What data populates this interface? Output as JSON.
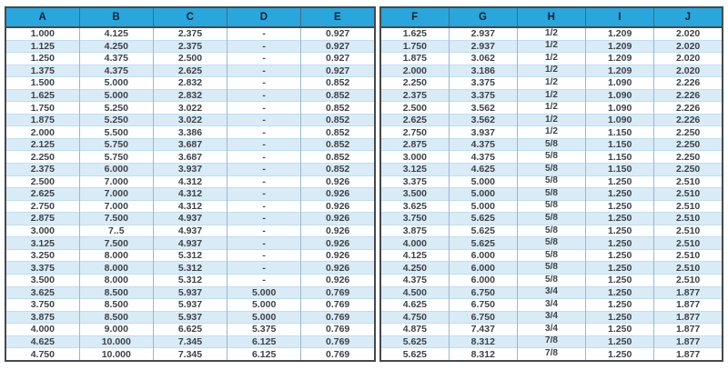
{
  "table": {
    "colors": {
      "header_bg": "#2ba6dc",
      "header_text": "#0e2239",
      "stripe": "#d9ebf7",
      "outer_border": "#45494d",
      "body_text": "#3f4247"
    },
    "left": {
      "headers": [
        "A",
        "B",
        "C",
        "D",
        "E"
      ],
      "rows": [
        [
          "1.000",
          "4.125",
          "2.375",
          "-",
          "0.927"
        ],
        [
          "1.125",
          "4.250",
          "2.375",
          "-",
          "0.927"
        ],
        [
          "1.250",
          "4.375",
          "2.500",
          "-",
          "0.927"
        ],
        [
          "1.375",
          "4.375",
          "2.625",
          "-",
          "0.927"
        ],
        [
          "1.500",
          "5.000",
          "2.832",
          "-",
          "0.852"
        ],
        [
          "1.625",
          "5.000",
          "2.832",
          "-",
          "0.852"
        ],
        [
          "1.750",
          "5.250",
          "3.022",
          "-",
          "0.852"
        ],
        [
          "1.875",
          "5.250",
          "3.022",
          "-",
          "0.852"
        ],
        [
          "2.000",
          "5.500",
          "3.386",
          "-",
          "0.852"
        ],
        [
          "2.125",
          "5.750",
          "3.687",
          "-",
          "0.852"
        ],
        [
          "2.250",
          "5.750",
          "3.687",
          "-",
          "0.852"
        ],
        [
          "2.375",
          "6.000",
          "3.937",
          "-",
          "0.852"
        ],
        [
          "2.500",
          "7.000",
          "4.312",
          "-",
          "0.926"
        ],
        [
          "2.625",
          "7.000",
          "4.312",
          "-",
          "0.926"
        ],
        [
          "2.750",
          "7.000",
          "4.312",
          "-",
          "0.926"
        ],
        [
          "2.875",
          "7.500",
          "4.937",
          "-",
          "0.926"
        ],
        [
          "3.000",
          "7..5",
          "4.937",
          "-",
          "0.926"
        ],
        [
          "3.125",
          "7.500",
          "4.937",
          "-",
          "0.926"
        ],
        [
          "3.250",
          "8.000",
          "5.312",
          "-",
          "0.926"
        ],
        [
          "3.375",
          "8.000",
          "5.312",
          "-",
          "0.926"
        ],
        [
          "3.500",
          "8.000",
          "5.312",
          "-",
          "0.926"
        ],
        [
          "3.625",
          "8.500",
          "5.937",
          "5.000",
          "0.769"
        ],
        [
          "3.750",
          "8.500",
          "5.937",
          "5.000",
          "0.769"
        ],
        [
          "3.875",
          "8.500",
          "5.937",
          "5.000",
          "0.769"
        ],
        [
          "4.000",
          "9.000",
          "6.625",
          "5.375",
          "0.769"
        ],
        [
          "4.625",
          "10.000",
          "7.345",
          "6.125",
          "0.769"
        ],
        [
          "4.750",
          "10.000",
          "7.345",
          "6.125",
          "0.769"
        ]
      ]
    },
    "right": {
      "headers": [
        "F",
        "G",
        "H",
        "I",
        "J"
      ],
      "fraction_column_index": 2,
      "rows": [
        [
          "1.625",
          "2.937",
          "1/2",
          "1.209",
          "2.020"
        ],
        [
          "1.750",
          "2.937",
          "1/2",
          "1.209",
          "2.020"
        ],
        [
          "1.875",
          "3.062",
          "1/2",
          "1.209",
          "2.020"
        ],
        [
          "2.000",
          "3.186",
          "1/2",
          "1.209",
          "2.020"
        ],
        [
          "2.250",
          "3.375",
          "1/2",
          "1.090",
          "2.226"
        ],
        [
          "2.375",
          "3.375",
          "1/2",
          "1.090",
          "2.226"
        ],
        [
          "2.500",
          "3.562",
          "1/2",
          "1.090",
          "2.226"
        ],
        [
          "2.625",
          "3.562",
          "1/2",
          "1.090",
          "2.226"
        ],
        [
          "2.750",
          "3.937",
          "1/2",
          "1.150",
          "2.250"
        ],
        [
          "2.875",
          "4.375",
          "5/8",
          "1.150",
          "2.250"
        ],
        [
          "3.000",
          "4.375",
          "5/8",
          "1.150",
          "2.250"
        ],
        [
          "3.125",
          "4.625",
          "5/8",
          "1.150",
          "2.250"
        ],
        [
          "3.375",
          "5.000",
          "5/8",
          "1.250",
          "2.510"
        ],
        [
          "3.500",
          "5.000",
          "5/8",
          "1.250",
          "2.510"
        ],
        [
          "3.625",
          "5.000",
          "5/8",
          "1.250",
          "2.510"
        ],
        [
          "3.750",
          "5.625",
          "5/8",
          "1.250",
          "2.510"
        ],
        [
          "3.875",
          "5.625",
          "5/8",
          "1.250",
          "2.510"
        ],
        [
          "4.000",
          "5.625",
          "5/8",
          "1.250",
          "2.510"
        ],
        [
          "4.125",
          "6.000",
          "5/8",
          "1.250",
          "2.510"
        ],
        [
          "4.250",
          "6.000",
          "5/8",
          "1.250",
          "2.510"
        ],
        [
          "4.375",
          "6.000",
          "5/8",
          "1.250",
          "2.510"
        ],
        [
          "4.500",
          "6.750",
          "3/4",
          "1.250",
          "1.877"
        ],
        [
          "4.625",
          "6.750",
          "3/4",
          "1.250",
          "1.877"
        ],
        [
          "4.750",
          "6.750",
          "3/4",
          "1.250",
          "1.877"
        ],
        [
          "4.875",
          "7.437",
          "3/4",
          "1.250",
          "1.877"
        ],
        [
          "5.625",
          "8.312",
          "7/8",
          "1.250",
          "1.877"
        ],
        [
          "5.625",
          "8.312",
          "7/8",
          "1.250",
          "1.877"
        ]
      ]
    }
  }
}
